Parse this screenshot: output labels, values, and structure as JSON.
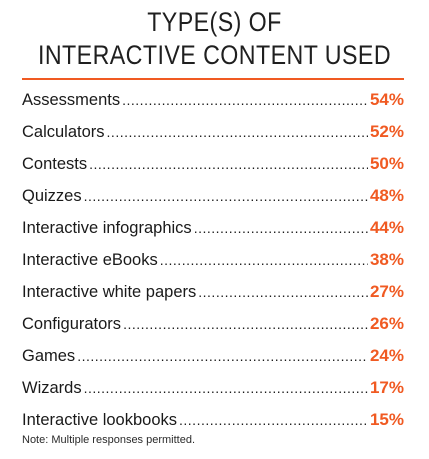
{
  "colors": {
    "accent": "#f05a22",
    "text": "#1a1a1a"
  },
  "chart_data": {
    "type": "table",
    "title_lines": [
      "TYPE(S) OF",
      "INTERACTIVE CONTENT USED"
    ],
    "unit": "%",
    "rows": [
      {
        "label": "Assessments",
        "value": 54,
        "display": "54%"
      },
      {
        "label": "Calculators",
        "value": 52,
        "display": "52%"
      },
      {
        "label": "Contests",
        "value": 50,
        "display": "50%"
      },
      {
        "label": "Quizzes",
        "value": 48,
        "display": "48%"
      },
      {
        "label": "Interactive infographics",
        "value": 44,
        "display": "44%"
      },
      {
        "label": "Interactive eBooks",
        "value": 38,
        "display": "38%"
      },
      {
        "label": "Interactive white papers",
        "value": 27,
        "display": "27%"
      },
      {
        "label": "Configurators",
        "value": 26,
        "display": "26%"
      },
      {
        "label": "Games",
        "value": 24,
        "display": "24%"
      },
      {
        "label": "Wizards",
        "value": 17,
        "display": "17%"
      },
      {
        "label": "Interactive lookbooks",
        "value": 15,
        "display": "15%"
      }
    ],
    "note": "Note: Multiple responses permitted."
  }
}
